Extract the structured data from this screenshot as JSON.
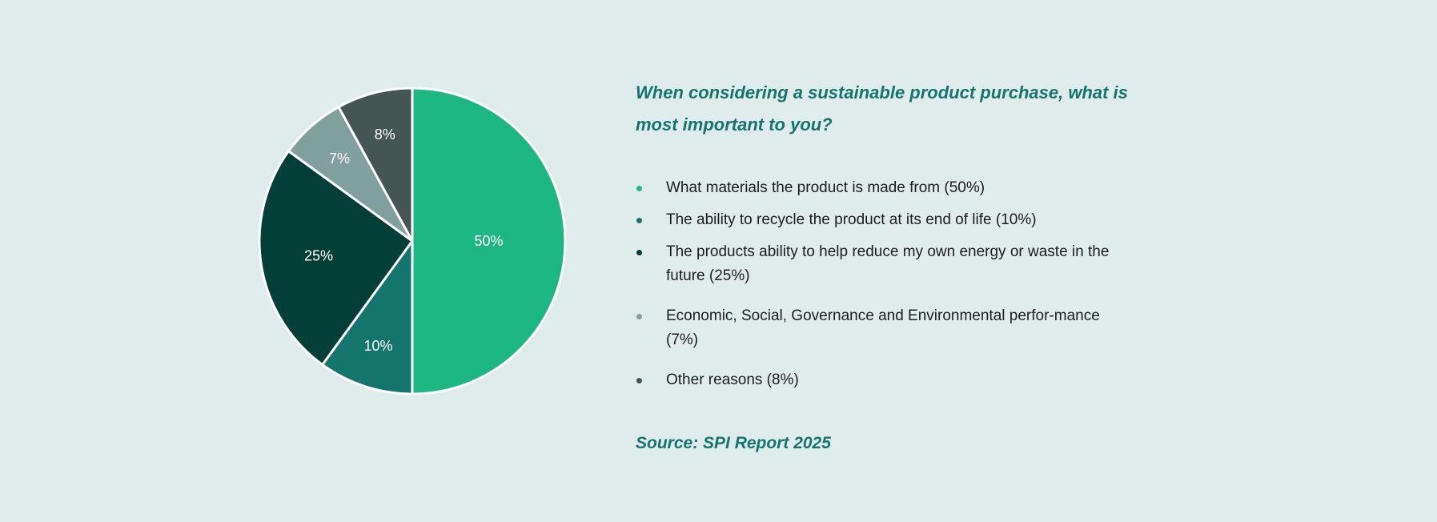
{
  "chart_data": {
    "type": "pie",
    "title": "When considering a sustainable product purchase, what is most important to you?",
    "slices": [
      {
        "label": "What materials the product is made from (50%)",
        "value": 50,
        "data_label": "50%",
        "color": "#1db784"
      },
      {
        "label": "The ability to recycle the product at its end of life (10%)",
        "value": 10,
        "data_label": "10%",
        "color": "#13756b"
      },
      {
        "label": "The products ability to help reduce my own energy or waste in the future (25%)",
        "value": 25,
        "data_label": "25%",
        "color": "#033f37"
      },
      {
        "label": "Economic, Social, Governance and Environmental perfor-mance (7%)",
        "value": 7,
        "data_label": "7%",
        "color": "#7fa09d"
      },
      {
        "label": "Other reasons (8%)",
        "value": 8,
        "data_label": "8%",
        "color": "#455553"
      }
    ],
    "legend_placement": "right",
    "source": "Source: SPI Report 2025"
  },
  "colors": {
    "background": "#dfeceb",
    "accent": "#13756b"
  }
}
